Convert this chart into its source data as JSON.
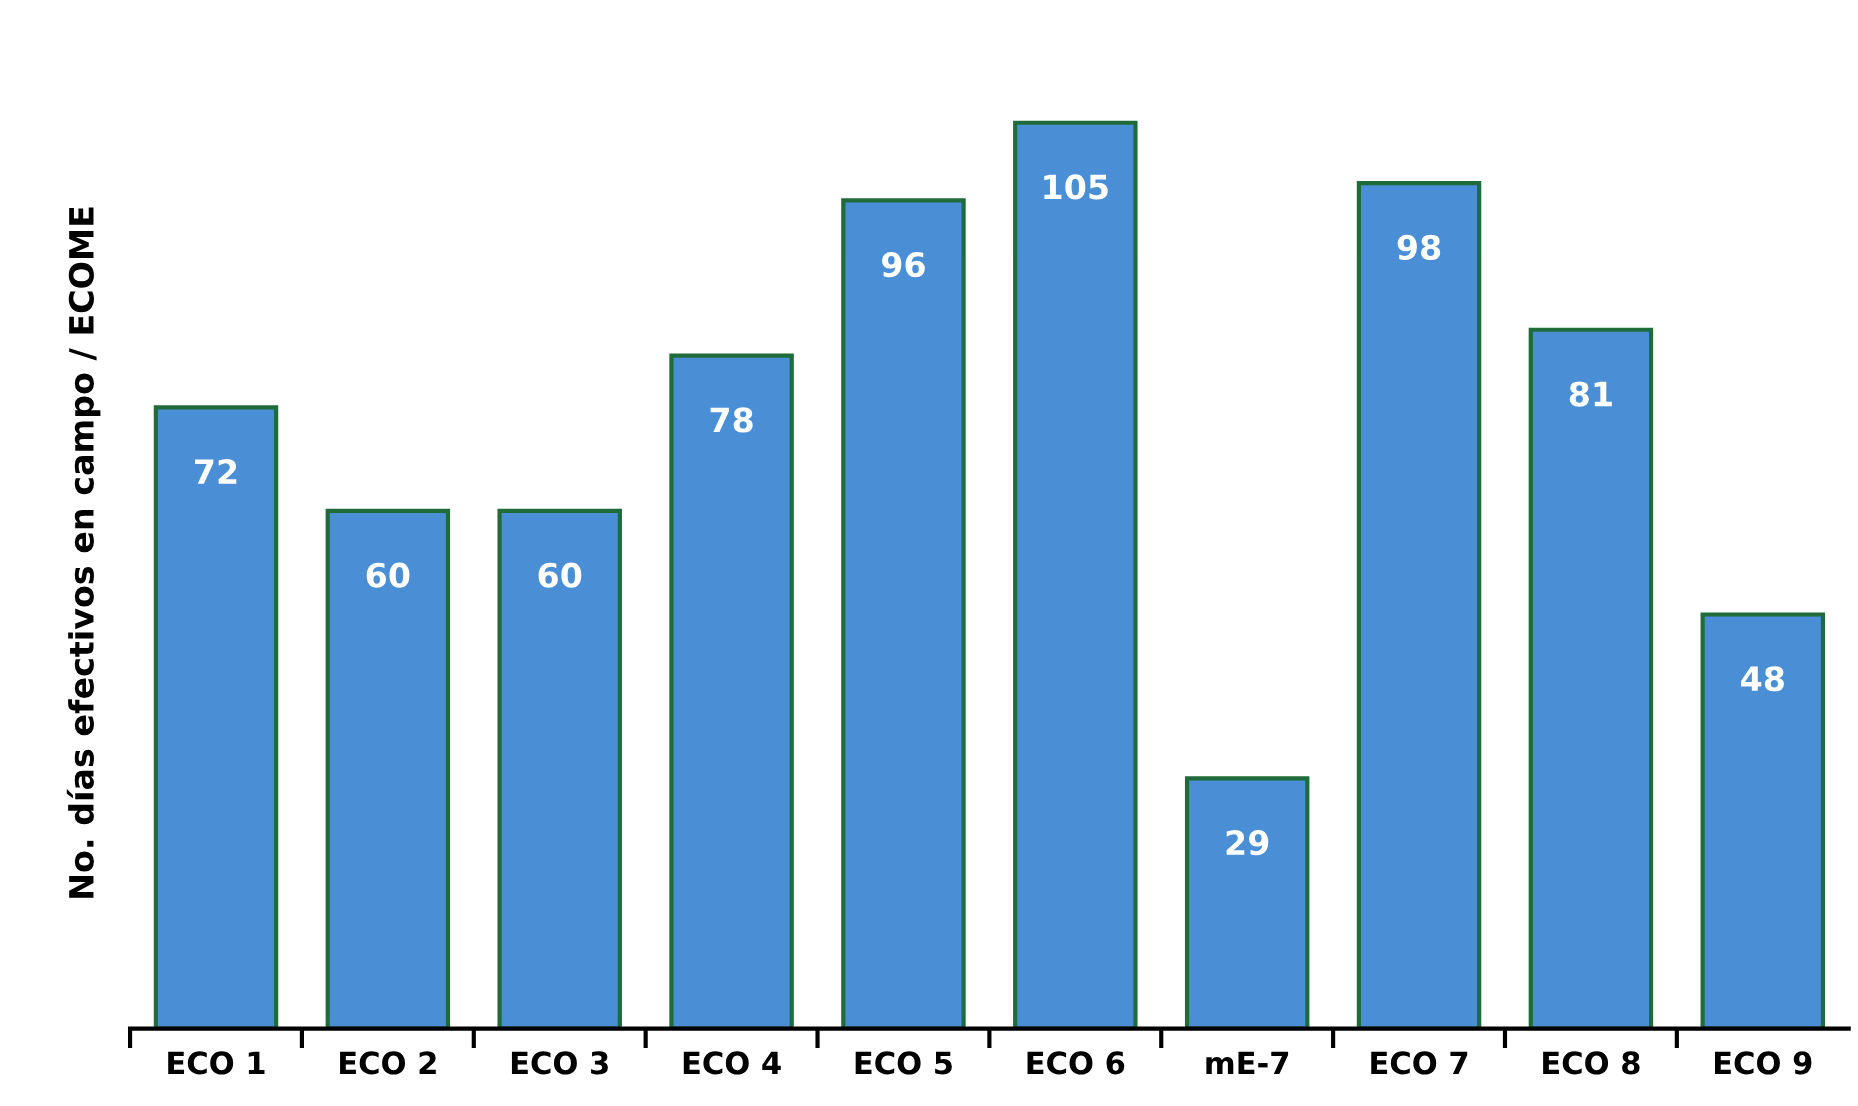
{
  "chart_data": {
    "type": "bar",
    "ylabel": "No. días efectivos en campo / ECOME",
    "categories": [
      "ECO 1",
      "ECO 2",
      "ECO 3",
      "ECO 4",
      "ECO 5",
      "ECO 6",
      "mE-7",
      "ECO 7",
      "ECO 8",
      "ECO 9"
    ],
    "values": [
      72,
      60,
      60,
      78,
      96,
      105,
      29,
      98,
      81,
      48
    ],
    "color": "#4a8ed6",
    "data_labels": true,
    "grid": false,
    "tick_labels": "x"
  }
}
